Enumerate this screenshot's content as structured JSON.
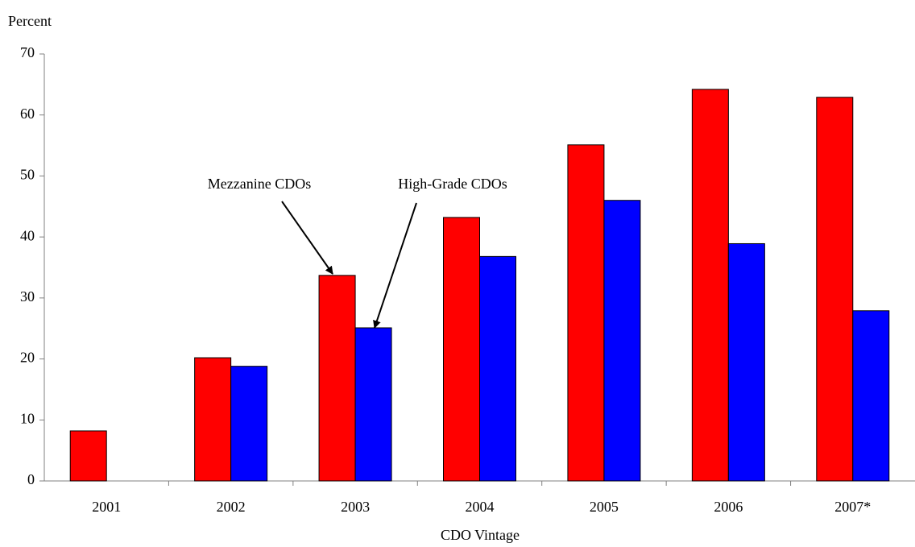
{
  "chart_data": {
    "type": "bar",
    "y_label": "Percent",
    "x_label": "CDO Vintage",
    "categories": [
      "2001",
      "2002",
      "2003",
      "2004",
      "2005",
      "2006",
      "2007*"
    ],
    "series": [
      {
        "name": "Mezzanine CDOs",
        "color": "#ff0000",
        "values": [
          8.2,
          20.2,
          33.7,
          43.2,
          55.1,
          64.2,
          62.9
        ]
      },
      {
        "name": "High-Grade CDOs",
        "color": "#0000ff",
        "values": [
          null,
          18.8,
          25.1,
          36.8,
          46,
          38.9,
          27.9
        ]
      }
    ],
    "ylim": [
      0,
      70
    ],
    "yticks": [
      0,
      10,
      20,
      30,
      40,
      50,
      60,
      70
    ],
    "grid": false
  }
}
